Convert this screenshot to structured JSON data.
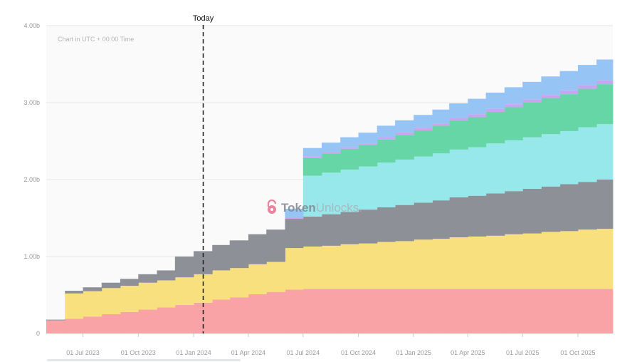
{
  "chart_data": {
    "type": "area",
    "stacked": true,
    "step": true,
    "note": "Chart in UTC + 00:00 Time",
    "watermark": "TokenUnlocks.",
    "today_label": "Today",
    "today_date": "2024-01-17",
    "x": [
      "2023-05",
      "2023-06",
      "2023-07",
      "2023-08",
      "2023-09",
      "2023-10",
      "2023-11",
      "2023-12",
      "2024-01",
      "2024-02",
      "2024-03",
      "2024-04",
      "2024-05",
      "2024-06",
      "2024-07",
      "2024-08",
      "2024-09",
      "2024-10",
      "2024-11",
      "2024-12",
      "2025-01",
      "2025-02",
      "2025-03",
      "2025-04",
      "2025-05",
      "2025-06",
      "2025-07",
      "2025-08",
      "2025-09",
      "2025-10",
      "2025-11"
    ],
    "x_end": "2025-11-28",
    "x_ticks": [
      "01 Jul 2023",
      "01 Oct 2023",
      "01 Jan 2024",
      "01 Apr 2024",
      "01 Jul 2024",
      "01 Oct 2024",
      "01 Jan 2025",
      "01 Apr 2025",
      "01 Jul 2025",
      "01 Oct 2025"
    ],
    "x_tick_dates": [
      "2023-07",
      "2023-10",
      "2024-01",
      "2024-04",
      "2024-07",
      "2024-10",
      "2025-01",
      "2025-04",
      "2025-07",
      "2025-10"
    ],
    "y_ticks": [
      "0",
      "1.00b",
      "2.00b",
      "3.00b",
      "4.00b"
    ],
    "y_tick_values": [
      0,
      1,
      2,
      3,
      4
    ],
    "ylim": [
      0,
      4
    ],
    "y_unit": "billions",
    "grid": true,
    "series": [
      {
        "color": "#f9a3a6",
        "values": [
          0.17,
          0.19,
          0.22,
          0.25,
          0.28,
          0.31,
          0.34,
          0.37,
          0.4,
          0.44,
          0.47,
          0.51,
          0.54,
          0.57,
          0.58,
          0.58,
          0.58,
          0.58,
          0.58,
          0.58,
          0.58,
          0.58,
          0.58,
          0.58,
          0.58,
          0.58,
          0.58,
          0.58,
          0.58,
          0.58,
          0.58
        ]
      },
      {
        "color": "#f8e07e",
        "values": [
          0,
          0.33,
          0.33,
          0.34,
          0.34,
          0.35,
          0.35,
          0.36,
          0.37,
          0.38,
          0.38,
          0.39,
          0.39,
          0.54,
          0.55,
          0.56,
          0.58,
          0.59,
          0.61,
          0.62,
          0.64,
          0.65,
          0.67,
          0.68,
          0.69,
          0.71,
          0.72,
          0.74,
          0.75,
          0.77,
          0.78
        ]
      },
      {
        "color": "#8e9097",
        "values": [
          0.01,
          0.035,
          0.05,
          0.07,
          0.09,
          0.11,
          0.13,
          0.27,
          0.3,
          0.33,
          0.36,
          0.39,
          0.42,
          0.38,
          0.39,
          0.41,
          0.42,
          0.44,
          0.45,
          0.47,
          0.48,
          0.5,
          0.52,
          0.53,
          0.55,
          0.56,
          0.58,
          0.59,
          0.61,
          0.62,
          0.64
        ]
      },
      {
        "color": "#96e8ea",
        "values": [
          0,
          0,
          0,
          0,
          0,
          0,
          0,
          0,
          0,
          0,
          0,
          0,
          0,
          0,
          0.53,
          0.54,
          0.55,
          0.56,
          0.58,
          0.59,
          0.6,
          0.61,
          0.62,
          0.63,
          0.65,
          0.66,
          0.67,
          0.68,
          0.69,
          0.71,
          0.72
        ]
      },
      {
        "color": "#66d6a6",
        "values": [
          0,
          0,
          0,
          0,
          0,
          0,
          0,
          0,
          0,
          0,
          0,
          0,
          0,
          0,
          0.23,
          0.25,
          0.27,
          0.28,
          0.3,
          0.32,
          0.34,
          0.36,
          0.38,
          0.39,
          0.41,
          0.43,
          0.45,
          0.47,
          0.48,
          0.5,
          0.52
        ]
      },
      {
        "color": "#c9a5f0",
        "values": [
          0,
          0,
          0,
          0,
          0,
          0,
          0,
          0,
          0,
          0,
          0,
          0,
          0,
          0.01,
          0.02,
          0.02,
          0.02,
          0.02,
          0.03,
          0.03,
          0.03,
          0.03,
          0.03,
          0.04,
          0.04,
          0.04,
          0.04,
          0.04,
          0.05,
          0.05,
          0.05
        ]
      },
      {
        "color": "#96c4f5",
        "values": [
          0,
          0,
          0,
          0,
          0,
          0,
          0,
          0,
          0,
          0,
          0,
          0,
          0,
          0.12,
          0.11,
          0.12,
          0.13,
          0.14,
          0.15,
          0.16,
          0.17,
          0.18,
          0.19,
          0.2,
          0.21,
          0.22,
          0.23,
          0.24,
          0.25,
          0.26,
          0.27
        ]
      }
    ]
  }
}
